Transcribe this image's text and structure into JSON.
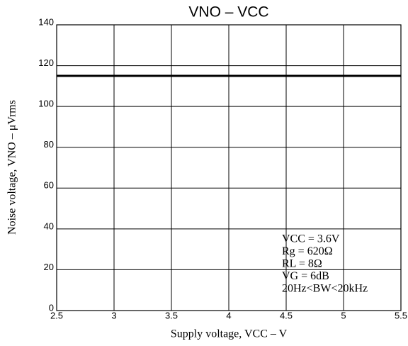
{
  "chart_data": {
    "type": "line",
    "title": "VNO – VCC",
    "x_label": "Supply voltage, VCC – V",
    "y_label": "Noise voltage, VNO – μVrms",
    "annotations": [
      "VCC = 3.6V",
      "Rg = 620Ω",
      "RL = 8Ω",
      "VG = 6dB",
      "20Hz<BW<20kHz"
    ],
    "x": [
      2.5,
      5.5
    ],
    "series": [
      {
        "color": "#000000",
        "values": [
          115,
          115
        ]
      }
    ],
    "xlim": [
      2.5,
      5.5
    ],
    "xticks": [
      2.5,
      3,
      3.5,
      4,
      4.5,
      5,
      5.5
    ],
    "ylim": [
      0,
      140
    ],
    "yticks": [
      0,
      20,
      40,
      60,
      80,
      100,
      120,
      140
    ],
    "grid": true
  }
}
